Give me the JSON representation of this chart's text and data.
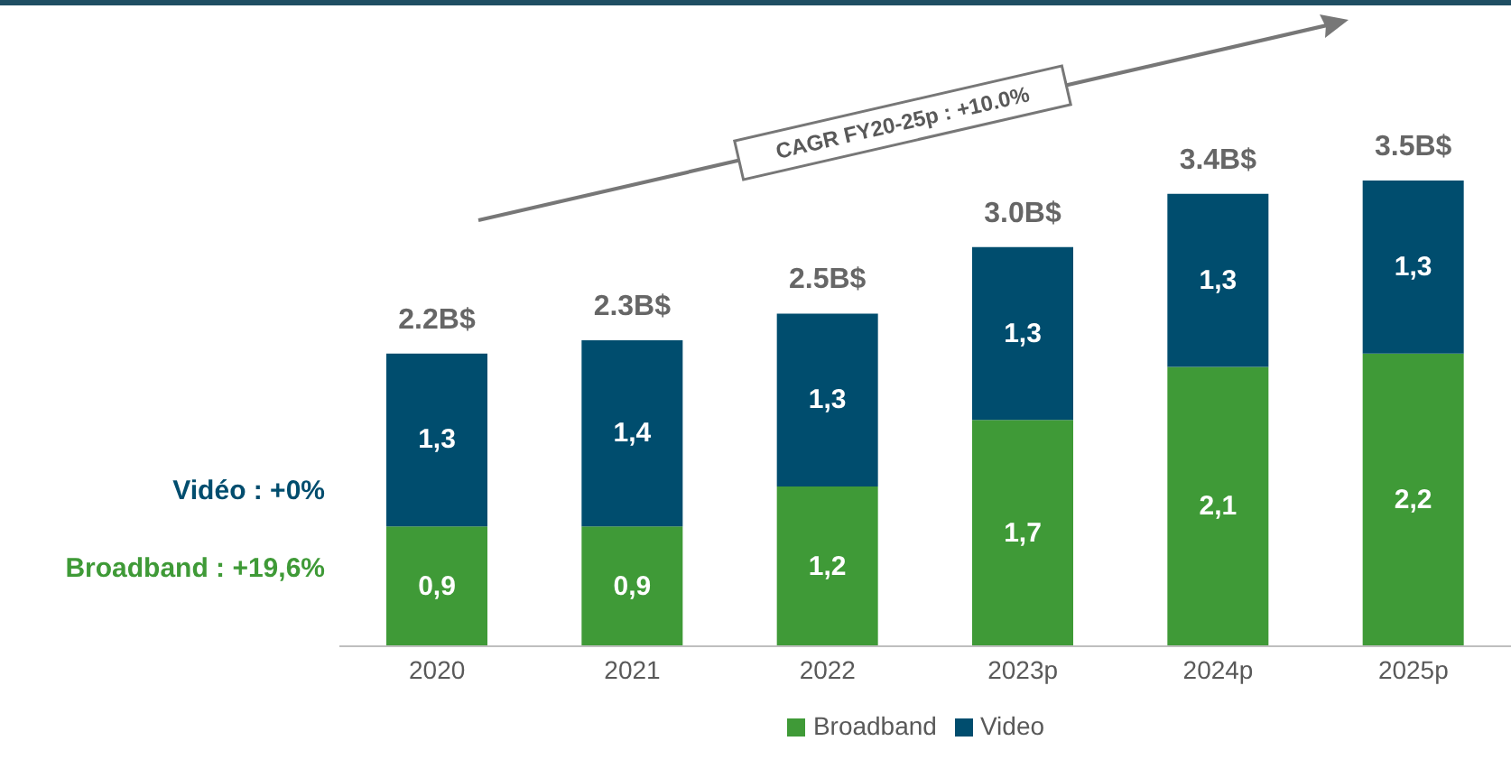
{
  "chart_data": {
    "type": "bar",
    "stacked": true,
    "legend": "bottom",
    "categories": [
      "2020",
      "2021",
      "2022",
      "2023p",
      "2024p",
      "2025p"
    ],
    "series": [
      {
        "name": "Broadband",
        "color": "#3f9a37",
        "values": [
          0.9,
          0.9,
          1.2,
          1.7,
          2.1,
          2.2
        ],
        "value_labels": [
          "0,9",
          "0,9",
          "1,2",
          "1,7",
          "2,1",
          "2,2"
        ]
      },
      {
        "name": "Video",
        "color": "#004d6e",
        "values": [
          1.3,
          1.4,
          1.3,
          1.3,
          1.3,
          1.3
        ],
        "value_labels": [
          "1,3",
          "1,4",
          "1,3",
          "1,3",
          "1,3",
          "1,3"
        ]
      }
    ],
    "totals": [
      "2.2B$",
      "2.3B$",
      "2.5B$",
      "3.0B$",
      "3.4B$",
      "3.5B$"
    ],
    "annotations": [
      "CAGR FY20-25p : +10.0%",
      "Vidéo : +0%",
      "Broadband : +19,6%"
    ]
  }
}
